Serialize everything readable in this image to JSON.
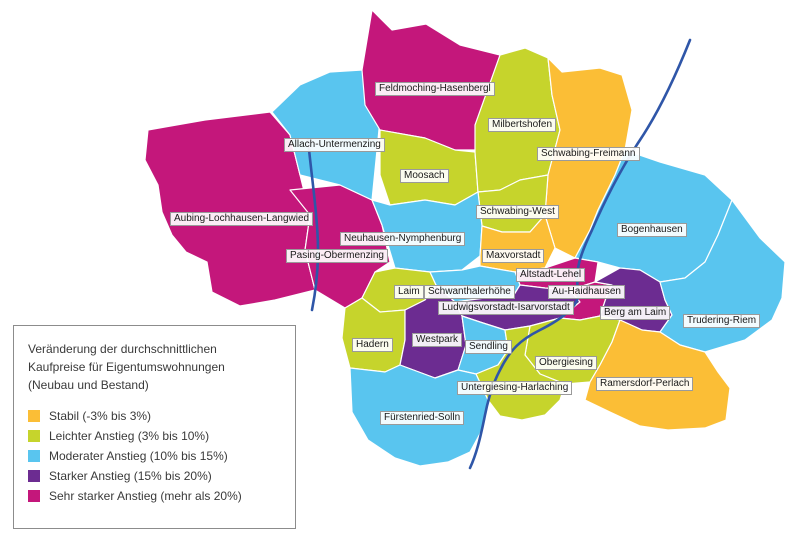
{
  "colors": {
    "stabil": "#fbbe36",
    "leicht": "#c6d42c",
    "moderat": "#59c5ef",
    "stark": "#6c2c91",
    "sehr_stark": "#c4177b",
    "river": "#2f56a8"
  },
  "districts": [
    "Feldmoching-Hasenbergl",
    "Milbertshofen",
    "Allach-Untermenzing",
    "Schwabing-Freimann",
    "Moosach",
    "Schwabing-West",
    "Aubing-Lochhausen-Langwied",
    "Bogenhausen",
    "Neuhausen-Nymphenburg",
    "Pasing-Obermenzing",
    "Maxvorstadt",
    "Altstadt-Lehel",
    "Laim",
    "Schwanthalerhöhe",
    "Au-Haidhausen",
    "Ludwigsvorstadt-Isarvorstadt",
    "Berg am Laim",
    "Trudering-Riem",
    "Hadern",
    "Westpark",
    "Sendling",
    "Obergiesing",
    "Untergiesing-Harlaching",
    "Ramersdorf-Perlach",
    "Fürstenried-Solln"
  ],
  "legend": {
    "title_lines": [
      "Veränderung der durchschnittlichen",
      "Kaufpreise für Eigentumswohnungen",
      "(Neubau und Bestand)"
    ],
    "items": [
      {
        "label": "Stabil (-3% bis 3%)",
        "color": "#fbbe36"
      },
      {
        "label": "Leichter Anstieg (3% bis 10%)",
        "color": "#c6d42c"
      },
      {
        "label": "Moderater Anstieg (10% bis 15%)",
        "color": "#59c5ef"
      },
      {
        "label": "Starker Anstieg (15% bis 20%)",
        "color": "#6c2c91"
      },
      {
        "label": "Sehr starker Anstieg (mehr als 20%)",
        "color": "#c4177b"
      }
    ]
  }
}
